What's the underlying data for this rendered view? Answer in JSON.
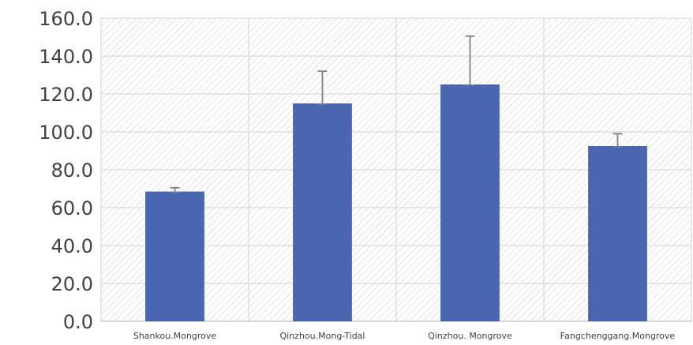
{
  "chart_data": {
    "type": "bar",
    "categories": [
      "Shankou.Mongrove",
      "Qinzhou.Mong-Tidal",
      "Qinzhou. Mongrove",
      "Fangchenggang.Mongrove"
    ],
    "series": [
      {
        "values": [
          68.5,
          115.0,
          125.0,
          92.5
        ],
        "error_plus": [
          2.0,
          17.0,
          25.5,
          6.5
        ],
        "color": "#4a66b0"
      }
    ],
    "y_ticks": [
      "0.0",
      "20.0",
      "40.0",
      "60.0",
      "80.0",
      "100.0",
      "120.0",
      "140.0",
      "160.0"
    ],
    "ylim": [
      0,
      160
    ],
    "grid": true,
    "legend": "none"
  }
}
